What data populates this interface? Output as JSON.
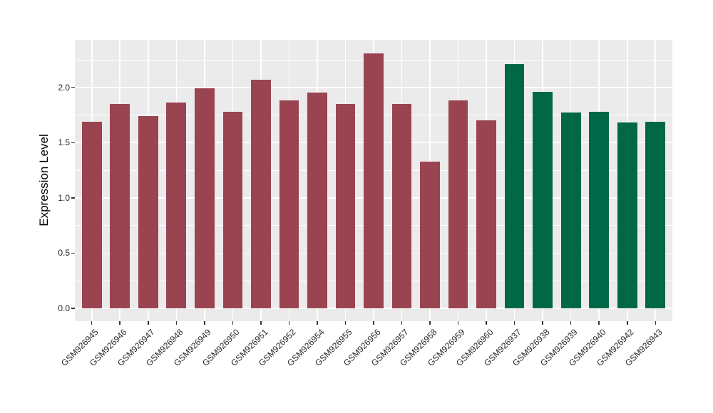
{
  "chart_data": {
    "type": "bar",
    "title": "",
    "xlabel": "",
    "ylabel": "Expression Level",
    "categories": [
      "GSM926945",
      "GSM926946",
      "GSM926947",
      "GSM926948",
      "GSM926949",
      "GSM926950",
      "GSM926951",
      "GSM926952",
      "GSM926954",
      "GSM926955",
      "GSM926956",
      "GSM926957",
      "GSM926958",
      "GSM926959",
      "GSM926960",
      "GSM926937",
      "GSM926938",
      "GSM926939",
      "GSM926940",
      "GSM926942",
      "GSM926943"
    ],
    "values": [
      1.69,
      1.85,
      1.74,
      1.86,
      1.99,
      1.78,
      2.07,
      1.88,
      1.95,
      1.85,
      2.31,
      1.85,
      1.33,
      1.88,
      1.7,
      2.21,
      1.96,
      1.77,
      1.78,
      1.68,
      1.69
    ],
    "groups": [
      {
        "color": "#9A4351",
        "count": 15
      },
      {
        "color": "#006846",
        "count": 6
      }
    ],
    "y_ticks": [
      0.0,
      0.5,
      1.0,
      1.5,
      2.0
    ],
    "y_tick_labels": [
      "0.0",
      "0.5",
      "1.0",
      "1.5",
      "2.0"
    ],
    "y_minor_ticks": [
      0.25,
      0.75,
      1.25,
      1.75,
      2.25
    ],
    "ylim": [
      0,
      2.43
    ],
    "grid": true,
    "legend": "none",
    "panel_background": "#EBEBEB",
    "gridline_color": "#FFFFFF",
    "tick_color": "#333333",
    "axis_text_color": "#262626",
    "axis_title_color": "#000000"
  }
}
